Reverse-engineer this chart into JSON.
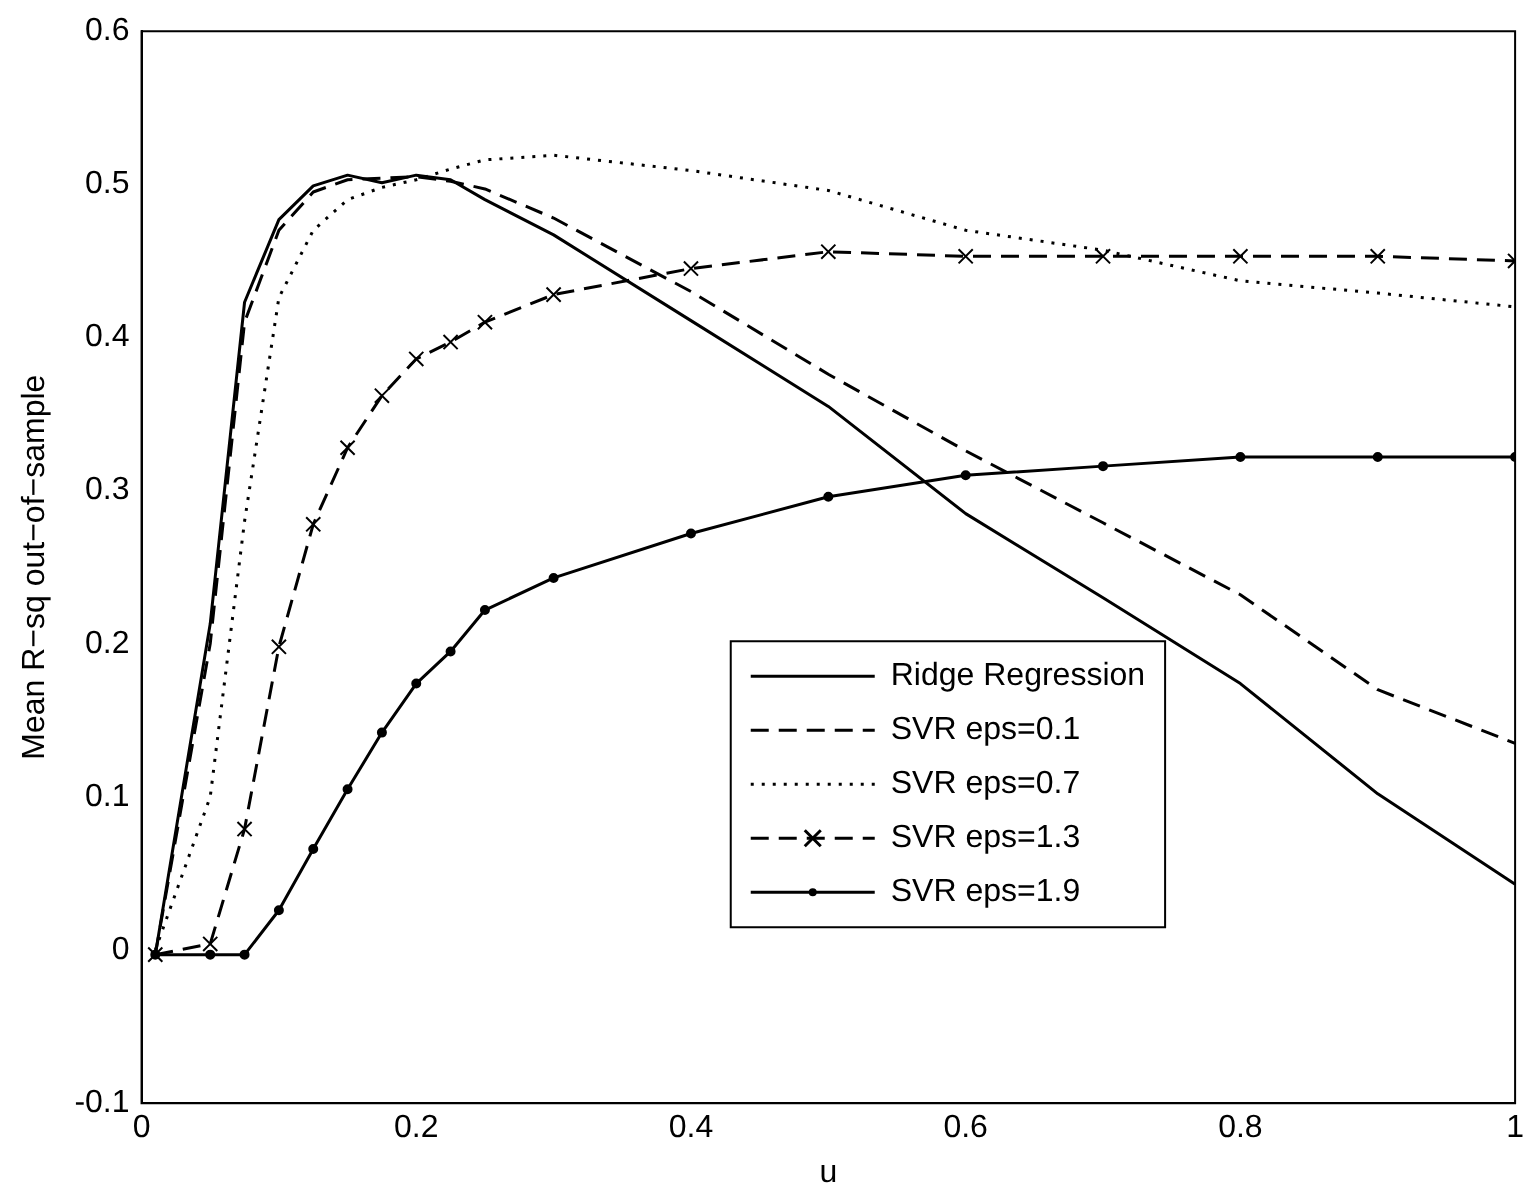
{
  "chart_data": {
    "type": "line",
    "xlabel": "u",
    "ylabel": "Mean R−sq out−of−sample",
    "x": [
      0.01,
      0.05,
      0.075,
      0.1,
      0.125,
      0.15,
      0.175,
      0.2,
      0.225,
      0.25,
      0.3,
      0.4,
      0.5,
      0.6,
      0.7,
      0.8,
      0.9,
      1.0
    ],
    "xlim": [
      0,
      1
    ],
    "xticks": [
      0,
      0.2,
      0.4,
      0.6,
      0.8,
      1
    ],
    "ylim": [
      -0.1,
      0.6
    ],
    "yticks": [
      -0.1,
      0,
      0.1,
      0.2,
      0.3,
      0.4,
      0.5,
      0.6
    ],
    "grid": false,
    "legend": "bottom right",
    "series": [
      {
        "name": "Ridge Regression",
        "color": "#000000",
        "line_style": "solid",
        "marker": "none",
        "values": [
          -0.003,
          0.213,
          0.423,
          0.477,
          0.499,
          0.506,
          0.501,
          0.506,
          0.503,
          0.49,
          0.467,
          0.411,
          0.355,
          0.285,
          0.23,
          0.174,
          0.102,
          0.043
        ]
      },
      {
        "name": "SVR eps=0.1",
        "color": "#000000",
        "line_style": "dashed",
        "marker": "none",
        "values": [
          -0.003,
          0.2,
          0.41,
          0.47,
          0.495,
          0.503,
          0.504,
          0.505,
          0.502,
          0.497,
          0.478,
          0.43,
          0.376,
          0.326,
          0.279,
          0.232,
          0.17,
          0.135
        ]
      },
      {
        "name": "SVR eps=0.7",
        "color": "#000000",
        "line_style": "dotted",
        "marker": "none",
        "values": [
          0,
          0.1,
          0.28,
          0.426,
          0.47,
          0.49,
          0.498,
          0.503,
          0.51,
          0.516,
          0.519,
          0.509,
          0.496,
          0.47,
          0.457,
          0.437,
          0.429,
          0.42
        ]
      },
      {
        "name": "SVR eps=1.3",
        "color": "#000000",
        "line_style": "dashed",
        "marker": "cross",
        "values": [
          -0.003,
          0.004,
          0.079,
          0.198,
          0.278,
          0.328,
          0.362,
          0.386,
          0.397,
          0.41,
          0.428,
          0.445,
          0.456,
          0.453,
          0.453,
          0.453,
          0.453,
          0.45
        ]
      },
      {
        "name": "SVR eps=1.9",
        "color": "#000000",
        "line_style": "solid",
        "marker": "circle",
        "values": [
          -0.003,
          -0.003,
          -0.003,
          0.026,
          0.066,
          0.105,
          0.142,
          0.174,
          0.195,
          0.222,
          0.243,
          0.272,
          0.296,
          0.31,
          0.316,
          0.322,
          0.322,
          0.322
        ]
      }
    ]
  }
}
